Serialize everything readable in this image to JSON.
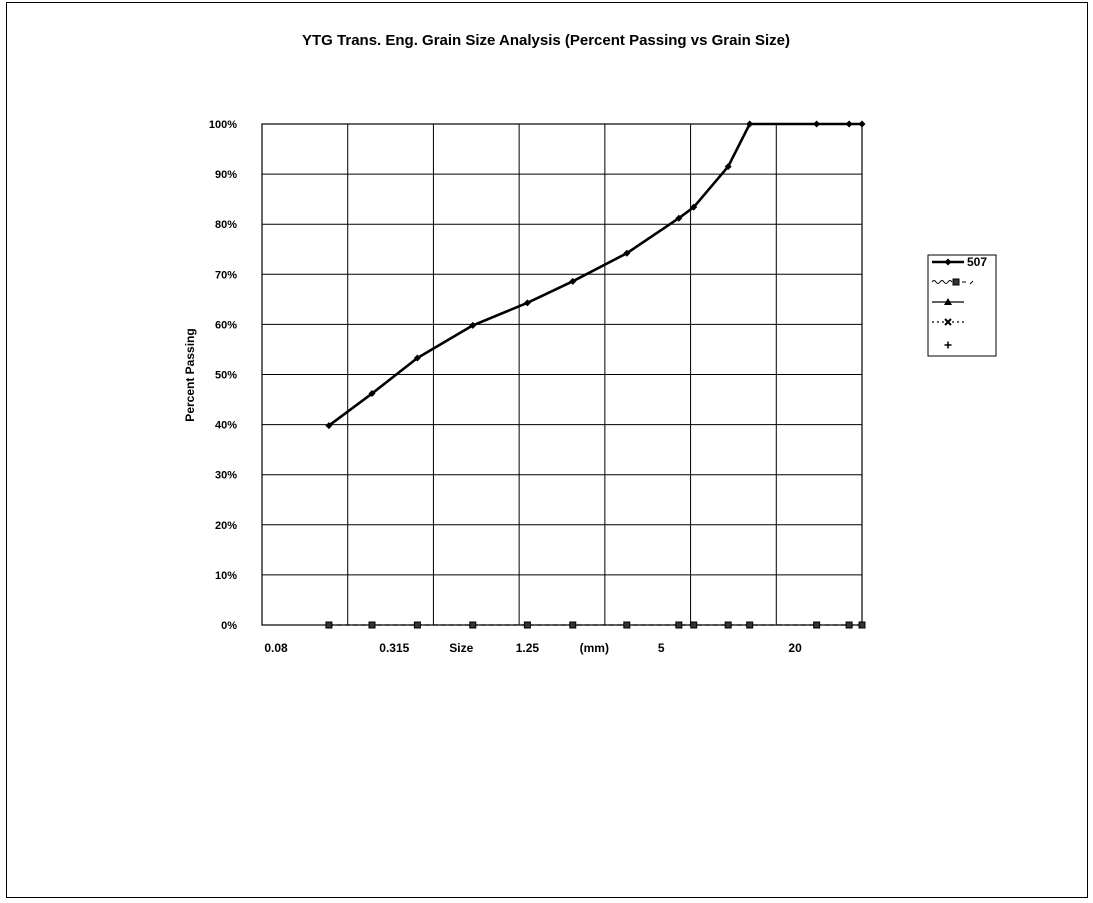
{
  "chart_data": {
    "type": "line",
    "title": "YTG Trans. Eng. Grain Size Analysis (Percent Passing vs Grain Size)",
    "ylabel": "Percent Passing",
    "xlabel": "Size",
    "xunit": "(mm)",
    "x_scale": "log",
    "x_tick_labels": [
      "0.08",
      "0.315",
      "1.25",
      "5",
      "20"
    ],
    "y_tick_labels": [
      "0%",
      "10%",
      "20%",
      "30%",
      "40%",
      "50%",
      "60%",
      "70%",
      "80%",
      "90%",
      "100%"
    ],
    "ylim": [
      0,
      100
    ],
    "grid": true,
    "legend_position": "right",
    "series": [
      {
        "name": "507",
        "marker": "diamond",
        "style": "solid-thick",
        "points": [
          {
            "x": 0.16,
            "y": 39.8
          },
          {
            "x": 0.25,
            "y": 46.2
          },
          {
            "x": 0.4,
            "y": 53.3
          },
          {
            "x": 0.71,
            "y": 59.8
          },
          {
            "x": 1.25,
            "y": 64.3
          },
          {
            "x": 2,
            "y": 68.6
          },
          {
            "x": 3.5,
            "y": 74.2
          },
          {
            "x": 6,
            "y": 81.2
          },
          {
            "x": 7,
            "y": 83.4
          },
          {
            "x": 10,
            "y": 91.5
          },
          {
            "x": 12.5,
            "y": 100
          },
          {
            "x": 25,
            "y": 100
          },
          {
            "x": 35,
            "y": 100
          },
          {
            "x": 40,
            "y": 100
          }
        ]
      },
      {
        "name": "",
        "marker": "square",
        "style": "dashed",
        "points": [
          {
            "x": 0.16,
            "y": 0
          },
          {
            "x": 0.25,
            "y": 0
          },
          {
            "x": 0.4,
            "y": 0
          },
          {
            "x": 0.71,
            "y": 0
          },
          {
            "x": 1.25,
            "y": 0
          },
          {
            "x": 2,
            "y": 0
          },
          {
            "x": 3.5,
            "y": 0
          },
          {
            "x": 6,
            "y": 0
          },
          {
            "x": 7,
            "y": 0
          },
          {
            "x": 10,
            "y": 0
          },
          {
            "x": 12.5,
            "y": 0
          },
          {
            "x": 25,
            "y": 0
          },
          {
            "x": 35,
            "y": 0
          },
          {
            "x": 40,
            "y": 0
          }
        ]
      },
      {
        "name": "",
        "marker": "triangle",
        "style": "solid",
        "points": []
      },
      {
        "name": "",
        "marker": "cross",
        "style": "dotted",
        "points": []
      },
      {
        "name": "",
        "marker": "plus",
        "style": "none",
        "points": []
      }
    ]
  }
}
